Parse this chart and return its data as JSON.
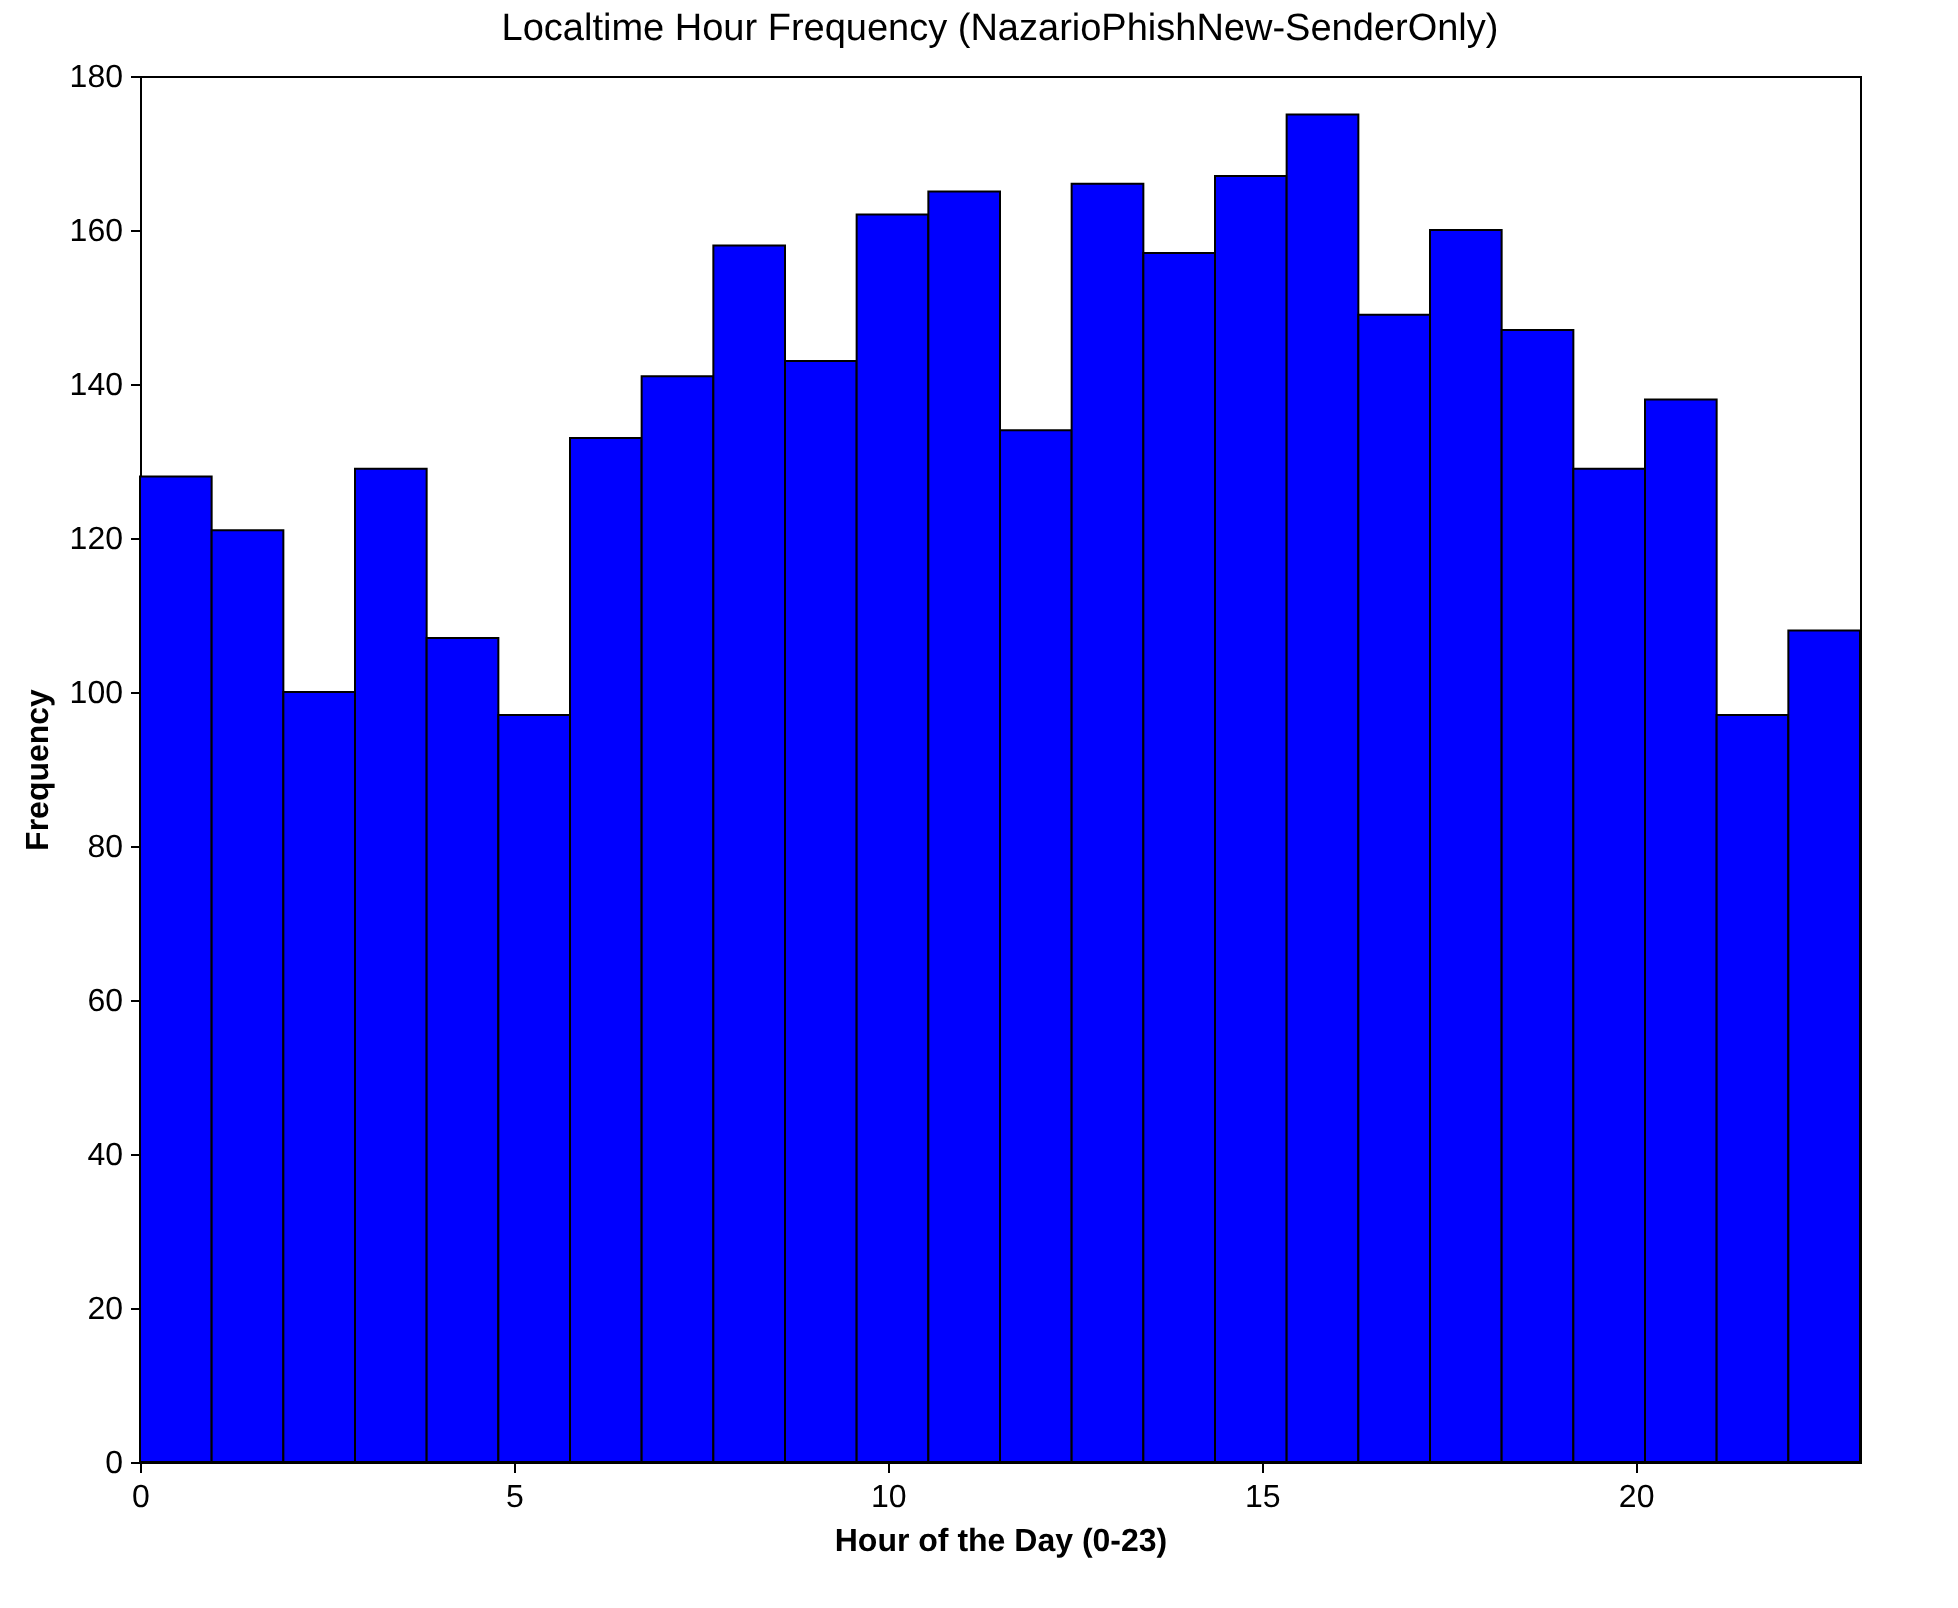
{
  "chart_data": {
    "type": "histogram",
    "title": "Localtime Hour Frequency (NazarioPhishNew-SenderOnly)",
    "xlabel": "Hour of the Day (0-23)",
    "ylabel": "Frequency",
    "bins": [
      0,
      0.958,
      1.917,
      2.875,
      3.833,
      4.792,
      5.75,
      6.708,
      7.667,
      8.625,
      9.583,
      10.542,
      11.5,
      12.458,
      13.417,
      14.375,
      15.333,
      16.292,
      17.25,
      18.208,
      19.167,
      20.125,
      21.083,
      22.042,
      23
    ],
    "values": [
      128,
      121,
      100,
      129,
      107,
      97,
      133,
      141,
      158,
      143,
      162,
      165,
      134,
      166,
      157,
      167,
      175,
      149,
      160,
      147,
      129,
      138,
      97,
      108
    ],
    "color": "#0000ff",
    "xlim": [
      0,
      23
    ],
    "xticks": [
      0,
      5,
      10,
      15,
      20
    ],
    "ylim": [
      0,
      180
    ],
    "yticks": [
      0,
      20,
      40,
      60,
      80,
      100,
      120,
      140,
      160,
      180
    ]
  }
}
